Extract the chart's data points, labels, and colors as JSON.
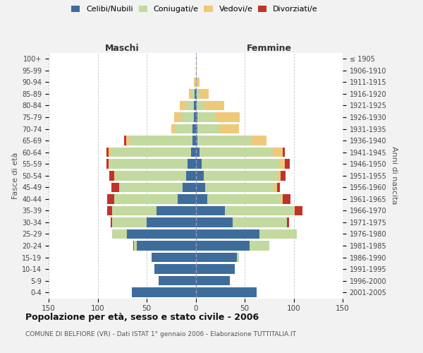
{
  "age_groups": [
    "0-4",
    "5-9",
    "10-14",
    "15-19",
    "20-24",
    "25-29",
    "30-34",
    "35-39",
    "40-44",
    "45-49",
    "50-54",
    "55-59",
    "60-64",
    "65-69",
    "70-74",
    "75-79",
    "80-84",
    "85-89",
    "90-94",
    "95-99",
    "100+"
  ],
  "birth_years": [
    "2001-2005",
    "1996-2000",
    "1991-1995",
    "1986-1990",
    "1981-1985",
    "1976-1980",
    "1971-1975",
    "1966-1970",
    "1961-1965",
    "1956-1960",
    "1951-1955",
    "1946-1950",
    "1941-1945",
    "1936-1940",
    "1931-1935",
    "1926-1930",
    "1921-1925",
    "1916-1920",
    "1911-1915",
    "1906-1910",
    "≤ 1905"
  ],
  "males_celibi": [
    65,
    38,
    42,
    45,
    60,
    70,
    50,
    40,
    18,
    13,
    10,
    8,
    5,
    3,
    3,
    2,
    2,
    1,
    0,
    0,
    0
  ],
  "males_coniugati": [
    0,
    0,
    0,
    0,
    3,
    15,
    35,
    45,
    65,
    65,
    72,
    80,
    82,
    65,
    18,
    12,
    8,
    3,
    1,
    0,
    0
  ],
  "males_vedovi": [
    0,
    0,
    0,
    0,
    0,
    0,
    0,
    0,
    0,
    0,
    1,
    1,
    2,
    3,
    4,
    8,
    6,
    3,
    1,
    0,
    0
  ],
  "males_divorziati": [
    0,
    0,
    0,
    0,
    1,
    0,
    2,
    5,
    7,
    8,
    5,
    2,
    2,
    2,
    0,
    0,
    0,
    0,
    0,
    0,
    0
  ],
  "females_nubili": [
    62,
    35,
    40,
    42,
    55,
    65,
    38,
    30,
    12,
    10,
    8,
    6,
    4,
    2,
    2,
    2,
    1,
    1,
    0,
    0,
    0
  ],
  "females_coniugate": [
    0,
    0,
    0,
    2,
    20,
    38,
    55,
    70,
    75,
    70,
    75,
    80,
    75,
    55,
    22,
    18,
    8,
    4,
    1,
    0,
    0
  ],
  "females_vedove": [
    0,
    0,
    0,
    0,
    0,
    0,
    0,
    1,
    2,
    3,
    4,
    5,
    10,
    15,
    20,
    25,
    20,
    8,
    3,
    1,
    0
  ],
  "females_divorziate": [
    0,
    0,
    0,
    0,
    0,
    0,
    2,
    8,
    8,
    3,
    5,
    5,
    2,
    0,
    0,
    0,
    0,
    0,
    0,
    0,
    0
  ],
  "color_celibi": "#3e6d9c",
  "color_coniugati": "#c2d9a0",
  "color_vedovi": "#f0c87a",
  "color_divorziati": "#c0322a",
  "title": "Popolazione per età, sesso e stato civile - 2006",
  "subtitle": "COMUNE DI BELFIORE (VR) - Dati ISTAT 1° gennaio 2006 - Elaborazione TUTTITALIA.IT",
  "label_maschi": "Maschi",
  "label_femmine": "Femmine",
  "ylabel_left": "Fasce di età",
  "ylabel_right": "Anni di nascita",
  "legend_labels": [
    "Celibi/Nubili",
    "Coniugati/e",
    "Vedovi/e",
    "Divorziati/e"
  ],
  "xlim": 150,
  "bg_color": "#f2f2f2",
  "plot_bg": "#ffffff"
}
